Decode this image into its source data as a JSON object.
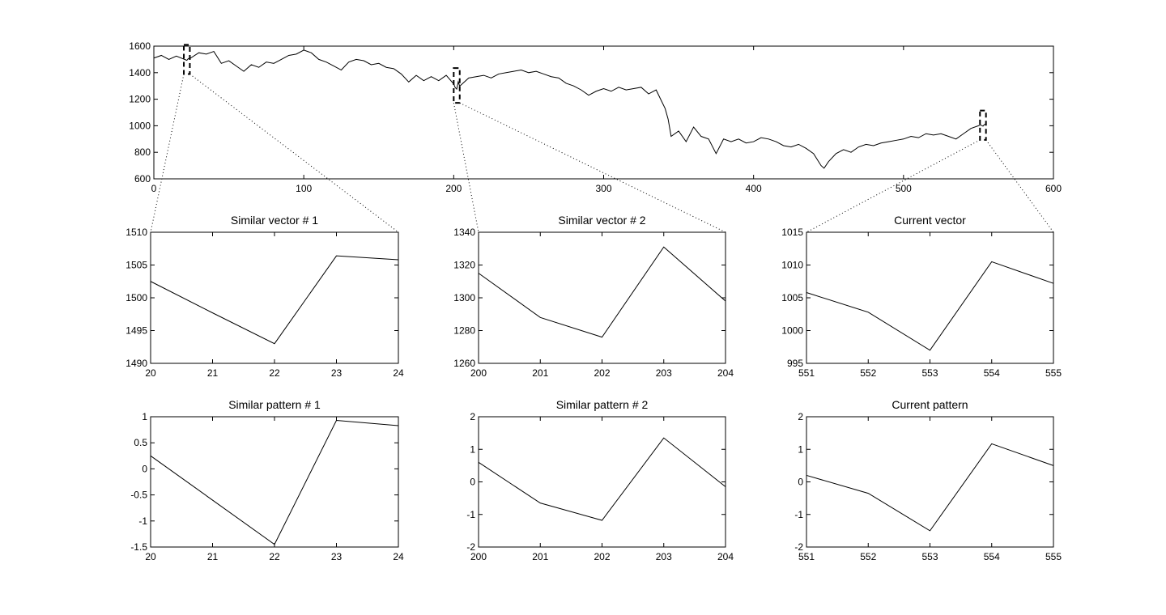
{
  "chart_data": [
    {
      "type": "line",
      "color": "#000000",
      "x": [
        0,
        5,
        10,
        15,
        20,
        21,
        22,
        23,
        24,
        30,
        35,
        40,
        45,
        50,
        55,
        60,
        65,
        70,
        75,
        80,
        85,
        90,
        95,
        100,
        105,
        110,
        115,
        120,
        125,
        130,
        135,
        140,
        145,
        150,
        155,
        160,
        165,
        170,
        175,
        180,
        185,
        190,
        195,
        200,
        201,
        202,
        203,
        204,
        210,
        215,
        220,
        225,
        230,
        235,
        240,
        245,
        250,
        255,
        260,
        265,
        270,
        275,
        280,
        285,
        290,
        295,
        300,
        305,
        310,
        315,
        320,
        325,
        330,
        335,
        338,
        341,
        343,
        345,
        350,
        355,
        360,
        365,
        370,
        375,
        380,
        385,
        390,
        395,
        400,
        405,
        410,
        415,
        420,
        425,
        430,
        435,
        440,
        445,
        447,
        450,
        455,
        460,
        465,
        470,
        475,
        480,
        485,
        490,
        495,
        500,
        505,
        510,
        515,
        520,
        525,
        530,
        535,
        540,
        545,
        550,
        551,
        552,
        553,
        554,
        555
      ],
      "values": [
        1510,
        1530,
        1500,
        1525,
        1502,
        1498,
        1493,
        1506,
        1506,
        1550,
        1540,
        1560,
        1470,
        1490,
        1450,
        1410,
        1460,
        1440,
        1480,
        1470,
        1500,
        1530,
        1540,
        1570,
        1550,
        1500,
        1480,
        1450,
        1420,
        1480,
        1500,
        1490,
        1460,
        1470,
        1440,
        1430,
        1390,
        1330,
        1380,
        1340,
        1370,
        1340,
        1380,
        1315,
        1288,
        1276,
        1331,
        1298,
        1360,
        1370,
        1380,
        1360,
        1390,
        1400,
        1410,
        1420,
        1400,
        1410,
        1390,
        1370,
        1360,
        1320,
        1300,
        1270,
        1230,
        1260,
        1280,
        1260,
        1290,
        1270,
        1280,
        1290,
        1240,
        1270,
        1200,
        1130,
        1050,
        920,
        960,
        880,
        990,
        920,
        900,
        790,
        900,
        880,
        900,
        870,
        880,
        910,
        900,
        880,
        850,
        840,
        860,
        830,
        790,
        700,
        680,
        730,
        790,
        820,
        800,
        840,
        860,
        850,
        870,
        880,
        890,
        900,
        920,
        910,
        940,
        930,
        940,
        920,
        900,
        940,
        980,
        1000,
        1006,
        1003,
        997,
        1010,
        1007
      ],
      "xlim": [
        0,
        600
      ],
      "xticks": [
        0,
        100,
        200,
        300,
        400,
        500,
        600
      ],
      "ylim": [
        600,
        1600
      ],
      "yticks": [
        600,
        800,
        1000,
        1200,
        1400,
        1600
      ]
    },
    {
      "type": "line",
      "color": "#000000",
      "title": "Similar vector # 1",
      "x": [
        20,
        21,
        22,
        23,
        24
      ],
      "values": [
        1502.5,
        1497.7,
        1493,
        1506.4,
        1505.8
      ],
      "xlim": [
        20,
        24
      ],
      "xticks": [
        20,
        21,
        22,
        23,
        24
      ],
      "ylim": [
        1490,
        1510
      ],
      "yticks": [
        1490,
        1495,
        1500,
        1505,
        1510
      ]
    },
    {
      "type": "line",
      "color": "#000000",
      "title": "Similar vector # 2",
      "x": [
        200,
        201,
        202,
        203,
        204
      ],
      "values": [
        1315,
        1288,
        1276,
        1331,
        1298
      ],
      "xlim": [
        200,
        204
      ],
      "xticks": [
        200,
        201,
        202,
        203,
        204
      ],
      "ylim": [
        1260,
        1340
      ],
      "yticks": [
        1260,
        1280,
        1300,
        1320,
        1340
      ]
    },
    {
      "type": "line",
      "color": "#000000",
      "title": "Current vector",
      "x": [
        551,
        552,
        553,
        554,
        555
      ],
      "values": [
        1005.8,
        1002.8,
        997,
        1010.5,
        1007.2
      ],
      "xlim": [
        551,
        555
      ],
      "xticks": [
        551,
        552,
        553,
        554,
        555
      ],
      "ylim": [
        995,
        1015
      ],
      "yticks": [
        995,
        1000,
        1005,
        1010,
        1015
      ]
    },
    {
      "type": "line",
      "color": "#000000",
      "title": "Similar pattern # 1",
      "x": [
        20,
        21,
        22,
        23,
        24
      ],
      "values": [
        0.25,
        -0.6,
        -1.45,
        0.93,
        0.83
      ],
      "xlim": [
        20,
        24
      ],
      "xticks": [
        20,
        21,
        22,
        23,
        24
      ],
      "ylim": [
        -1.5,
        1
      ],
      "yticks": [
        -1.5,
        -1,
        -0.5,
        0,
        0.5,
        1
      ]
    },
    {
      "type": "line",
      "color": "#000000",
      "title": "Similar pattern # 2",
      "x": [
        200,
        201,
        202,
        203,
        204
      ],
      "values": [
        0.6,
        -0.65,
        -1.18,
        1.35,
        -0.15
      ],
      "xlim": [
        200,
        204
      ],
      "xticks": [
        200,
        201,
        202,
        203,
        204
      ],
      "ylim": [
        -2,
        2
      ],
      "yticks": [
        -2,
        -1,
        0,
        1,
        2
      ]
    },
    {
      "type": "line",
      "color": "#000000",
      "title": "Current pattern",
      "x": [
        551,
        552,
        553,
        554,
        555
      ],
      "values": [
        0.2,
        -0.35,
        -1.5,
        1.17,
        0.5
      ],
      "xlim": [
        551,
        555
      ],
      "xticks": [
        551,
        552,
        553,
        554,
        555
      ],
      "ylim": [
        -2,
        2
      ],
      "yticks": [
        -2,
        -1,
        0,
        1,
        2
      ]
    }
  ]
}
